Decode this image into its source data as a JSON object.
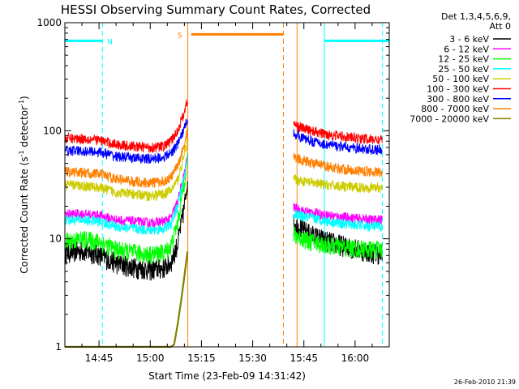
{
  "chart_data": {
    "type": "line",
    "title": "HESSI Observing Summary Count Rates, Corrected",
    "xlabel": "Start Time (23-Feb-09 14:31:42)",
    "ylabel": "Corrected Count Rate (s⁻¹ detector⁻¹)",
    "ylabel_parts": [
      "Corrected Count Rate (s",
      "-1",
      " detector",
      "-1",
      ")"
    ],
    "yscale": "log",
    "ylim": [
      1,
      1000
    ],
    "y_tick_labels": [
      {
        "value": 1,
        "label": "1"
      },
      {
        "value": 10,
        "label": "10"
      },
      {
        "value": 100,
        "label": "100"
      },
      {
        "value": 1000,
        "label": "1000"
      }
    ],
    "xlim": [
      "14:35",
      "16:10"
    ],
    "x_tick_labels": [
      {
        "value": "14:45",
        "label": "14:45"
      },
      {
        "value": "15:00",
        "label": "15:00"
      },
      {
        "value": "15:15",
        "label": "15:15"
      },
      {
        "value": "15:30",
        "label": "15:30"
      },
      {
        "value": "15:45",
        "label": "15:45"
      },
      {
        "value": "16:00",
        "label": "16:00"
      }
    ],
    "legend_placement": "right",
    "legend_header": [
      "Det 1,3,4,5,6,9,",
      "Att 0"
    ],
    "series": [
      {
        "name": "3 - 6 keV",
        "color": "#000000",
        "segment1": [
          [
            "14:35",
            7.5
          ],
          [
            "14:40",
            7.8
          ],
          [
            "14:45",
            7.2
          ],
          [
            "14:50",
            6.0
          ],
          [
            "14:55",
            5.5
          ],
          [
            "15:00",
            5.2
          ],
          [
            "15:04",
            5.4
          ],
          [
            "15:06",
            6.0
          ],
          [
            "15:08",
            9.0
          ],
          [
            "15:10",
            20
          ],
          [
            "15:11",
            38
          ]
        ],
        "segment2": [
          [
            "15:42",
            14
          ],
          [
            "15:45",
            12
          ],
          [
            "15:50",
            10
          ],
          [
            "15:55",
            9.0
          ],
          [
            "16:00",
            8.2
          ],
          [
            "16:05",
            7.5
          ],
          [
            "16:08",
            7.3
          ]
        ]
      },
      {
        "name": "6 - 12 keV",
        "color": "#ff00ff",
        "segment1": [
          [
            "14:35",
            17
          ],
          [
            "14:40",
            17
          ],
          [
            "14:45",
            16.5
          ],
          [
            "14:50",
            15
          ],
          [
            "14:55",
            14.5
          ],
          [
            "15:00",
            14
          ],
          [
            "15:04",
            14.5
          ],
          [
            "15:06",
            15.5
          ],
          [
            "15:08",
            22
          ],
          [
            "15:10",
            40
          ],
          [
            "15:11",
            62
          ]
        ],
        "segment2": [
          [
            "15:42",
            19.5
          ],
          [
            "15:45",
            18
          ],
          [
            "15:50",
            17
          ],
          [
            "15:55",
            16
          ],
          [
            "16:00",
            15.5
          ],
          [
            "16:05",
            15
          ],
          [
            "16:08",
            15
          ]
        ]
      },
      {
        "name": "12 - 25 keV",
        "color": "#00ff00",
        "segment1": [
          [
            "14:35",
            9.5
          ],
          [
            "14:40",
            10
          ],
          [
            "14:45",
            9.5
          ],
          [
            "14:50",
            8.0
          ],
          [
            "14:55",
            7.5
          ],
          [
            "15:00",
            7.2
          ],
          [
            "15:04",
            7.5
          ],
          [
            "15:06",
            8.5
          ],
          [
            "15:08",
            14
          ],
          [
            "15:10",
            35
          ],
          [
            "15:11",
            58
          ]
        ],
        "segment2": [
          [
            "15:42",
            11
          ],
          [
            "15:45",
            10
          ],
          [
            "15:50",
            9.0
          ],
          [
            "15:55",
            8.5
          ],
          [
            "16:00",
            8.2
          ],
          [
            "16:05",
            8.0
          ],
          [
            "16:08",
            8.0
          ]
        ]
      },
      {
        "name": "25 - 50 keV",
        "color": "#00ffff",
        "segment1": [
          [
            "14:35",
            15
          ],
          [
            "14:40",
            15
          ],
          [
            "14:45",
            14.5
          ],
          [
            "14:50",
            13
          ],
          [
            "14:55",
            12.5
          ],
          [
            "15:00",
            12
          ],
          [
            "15:04",
            12.5
          ],
          [
            "15:06",
            13.5
          ],
          [
            "15:08",
            20
          ],
          [
            "15:10",
            38
          ],
          [
            "15:11",
            60
          ]
        ],
        "segment2": [
          [
            "15:42",
            17
          ],
          [
            "15:45",
            16
          ],
          [
            "15:50",
            15
          ],
          [
            "15:55",
            14
          ],
          [
            "16:00",
            13.5
          ],
          [
            "16:05",
            13
          ],
          [
            "16:08",
            13
          ]
        ]
      },
      {
        "name": "50 - 100 keV",
        "color": "#cccc00",
        "segment1": [
          [
            "14:35",
            32
          ],
          [
            "14:40",
            31
          ],
          [
            "14:45",
            30
          ],
          [
            "14:50",
            27
          ],
          [
            "14:55",
            26
          ],
          [
            "15:00",
            25
          ],
          [
            "15:04",
            26
          ],
          [
            "15:06",
            28
          ],
          [
            "15:08",
            35
          ],
          [
            "15:10",
            60
          ],
          [
            "15:11",
            85
          ]
        ],
        "segment2": [
          [
            "15:42",
            36
          ],
          [
            "15:45",
            34
          ],
          [
            "15:50",
            32
          ],
          [
            "15:55",
            31
          ],
          [
            "16:00",
            30
          ],
          [
            "16:05",
            30
          ],
          [
            "16:08",
            30
          ]
        ]
      },
      {
        "name": "100 - 300 keV",
        "color": "#ff0000",
        "segment1": [
          [
            "14:35",
            85
          ],
          [
            "14:40",
            85
          ],
          [
            "14:45",
            82
          ],
          [
            "14:50",
            75
          ],
          [
            "14:55",
            72
          ],
          [
            "15:00",
            70
          ],
          [
            "15:04",
            72
          ],
          [
            "15:06",
            80
          ],
          [
            "15:08",
            100
          ],
          [
            "15:10",
            150
          ],
          [
            "15:11",
            200
          ]
        ],
        "segment2": [
          [
            "15:42",
            115
          ],
          [
            "15:45",
            105
          ],
          [
            "15:50",
            95
          ],
          [
            "15:55",
            90
          ],
          [
            "16:00",
            86
          ],
          [
            "16:05",
            83
          ],
          [
            "16:08",
            82
          ]
        ]
      },
      {
        "name": "300 - 800 keV",
        "color": "#0000ff",
        "segment1": [
          [
            "14:35",
            66
          ],
          [
            "14:40",
            65
          ],
          [
            "14:45",
            64
          ],
          [
            "14:50",
            58
          ],
          [
            "14:55",
            56
          ],
          [
            "15:00",
            55
          ],
          [
            "15:04",
            57
          ],
          [
            "15:06",
            62
          ],
          [
            "15:08",
            75
          ],
          [
            "15:10",
            105
          ],
          [
            "15:11",
            135
          ]
        ],
        "segment2": [
          [
            "15:42",
            95
          ],
          [
            "15:45",
            85
          ],
          [
            "15:50",
            76
          ],
          [
            "15:55",
            72
          ],
          [
            "16:00",
            69
          ],
          [
            "16:05",
            67
          ],
          [
            "16:08",
            66
          ]
        ]
      },
      {
        "name": "800 - 7000 keV",
        "color": "#ff8000",
        "segment1": [
          [
            "14:35",
            42
          ],
          [
            "14:40",
            41
          ],
          [
            "14:45",
            40
          ],
          [
            "14:50",
            36
          ],
          [
            "14:55",
            34
          ],
          [
            "15:00",
            33
          ],
          [
            "15:04",
            34
          ],
          [
            "15:06",
            37
          ],
          [
            "15:08",
            47
          ],
          [
            "15:10",
            75
          ],
          [
            "15:11",
            105
          ]
        ],
        "segment2": [
          [
            "15:42",
            58
          ],
          [
            "15:45",
            53
          ],
          [
            "15:50",
            48
          ],
          [
            "15:55",
            45
          ],
          [
            "16:00",
            43
          ],
          [
            "16:05",
            42
          ],
          [
            "16:08",
            41
          ]
        ]
      },
      {
        "name": "7000 - 20000 keV",
        "color": "#808000",
        "segment1": [
          [
            "14:35",
            1
          ],
          [
            "15:06",
            1
          ],
          [
            "15:07",
            1.05
          ],
          [
            "15:08",
            1.6
          ],
          [
            "15:09",
            2.6
          ],
          [
            "15:10",
            4.5
          ],
          [
            "15:11",
            8.0
          ]
        ],
        "segment2": []
      }
    ],
    "overlays": [
      {
        "name": "N",
        "label": "N",
        "color": "#00ffff",
        "level": 680,
        "start": "14:35",
        "end": "14:46",
        "gap_start": "14:46",
        "gap_end": "15:51",
        "resume": "15:51",
        "stop": "16:10",
        "solid_verticals": [
          "14:35",
          "15:51"
        ],
        "dashed_verticals": [
          "14:46",
          "16:08"
        ]
      },
      {
        "name": "S",
        "label": "S",
        "color": "#ff8000",
        "level": 780,
        "start": "15:12",
        "end": "15:39",
        "solid_verticals": [
          "15:11",
          "15:43"
        ],
        "dashed_verticals": [
          "15:39"
        ]
      }
    ]
  },
  "footer": {
    "timestamp": "26-Feb-2010 21:39"
  }
}
